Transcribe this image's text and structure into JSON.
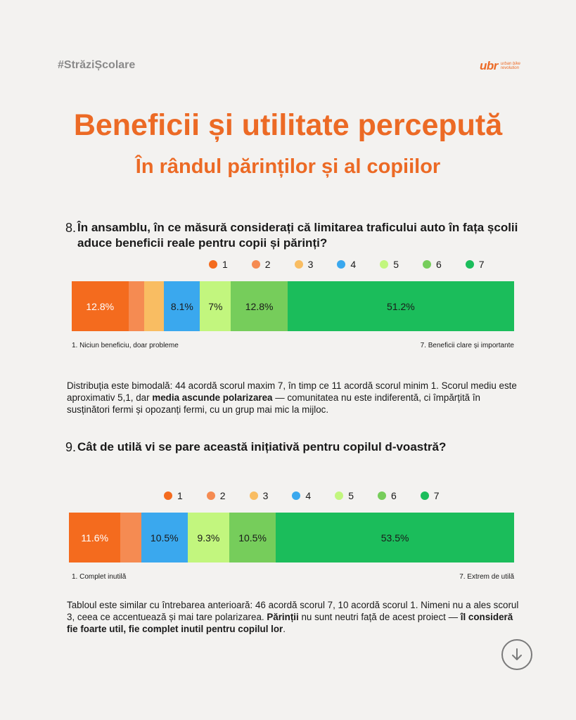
{
  "header": {
    "hashtag": "#StrăziȘcolare",
    "logo_text": "ubr",
    "logo_tagline": "urban bike revolution"
  },
  "title": "Beneficii și utilitate percepută",
  "subtitle": "În rândul părinților și al copiilor",
  "colors": {
    "1": "#f46b1e",
    "2": "#f58b52",
    "3": "#f9bd62",
    "4": "#3aa8ee",
    "5": "#c2f67e",
    "6": "#76cd5b",
    "7": "#1bbd5b",
    "accent": "#ec6a25"
  },
  "chart_data": [
    {
      "type": "bar",
      "orientation": "horizontal-stacked",
      "question_number": "8.",
      "question": "În ansamblu, în ce măsură considerați că limitarea traficului auto în fața școlii aduce beneficii reale pentru copii și părinți?",
      "legend": [
        "1",
        "2",
        "3",
        "4",
        "5",
        "6",
        "7"
      ],
      "values": [
        12.8,
        3.5,
        4.6,
        8.1,
        7.0,
        12.8,
        51.2
      ],
      "labels": [
        "12.8%",
        "",
        "",
        "8.1%",
        "7%",
        "12.8%",
        "51.2%"
      ],
      "min_label": "1. Niciun beneficiu, doar probleme",
      "max_label": "7. Beneficii clare și importante"
    },
    {
      "type": "bar",
      "orientation": "horizontal-stacked",
      "question_number": "9.",
      "question": "Cât de utilă vi se pare această inițiativă pentru copilul d-voastră?",
      "legend": [
        "1",
        "2",
        "3",
        "4",
        "5",
        "6",
        "7"
      ],
      "values": [
        11.6,
        4.6,
        0,
        10.5,
        9.3,
        10.5,
        53.5
      ],
      "labels": [
        "11.6%",
        "",
        "",
        "10.5%",
        "9.3%",
        "10.5%",
        "53.5%"
      ],
      "min_label": "1. Complet inutilă",
      "max_label": "7. Extrem de utilă"
    }
  ],
  "texts": {
    "q8_p1": "Distribuția este bimodală: 44 acordă scorul maxim 7, în timp ce 11 acordă scorul minim 1. Scorul mediu este aproximativ 5,1, dar ",
    "q8_bold": "media ascunde polarizarea",
    "q8_p2": " — comunitatea nu este indiferentă, ci împărțită în susținători fermi și opozanți fermi, cu un grup mai mic la mijloc.",
    "q9_p1": "Tabloul este similar cu întrebarea anterioară: 46 acordă scorul 7, 10 acordă scorul 1. Nimeni nu a ales scorul 3, ceea ce accentuează și mai tare polarizarea. ",
    "q9_bold1": "Părinții",
    "q9_p2": " nu sunt neutri față de acest proiect — ",
    "q9_bold2": "îl consideră fie foarte util, fie complet inutil pentru copilul lor",
    "q9_p3": "."
  }
}
